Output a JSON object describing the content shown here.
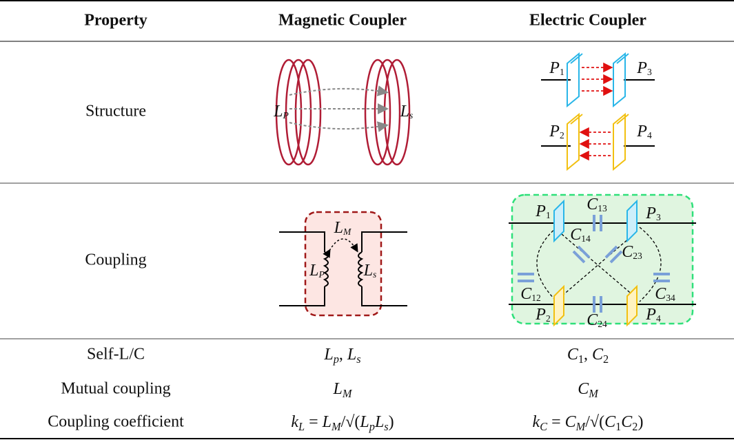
{
  "table": {
    "header": [
      "Property",
      "Magnetic Coupler",
      "Electric Coupler"
    ],
    "rows": [
      {
        "property": "Structure",
        "magnetic": [
          [
            "L",
            "P"
          ],
          [
            "L",
            "s"
          ]
        ],
        "electric": [
          [
            "P",
            "1"
          ],
          [
            "P",
            "3"
          ],
          [
            "P",
            "2"
          ],
          [
            "P",
            "4"
          ]
        ]
      },
      {
        "property": "Coupling",
        "magnetic": [
          [
            "L",
            "M"
          ],
          [
            "L",
            "P"
          ],
          [
            "L",
            "s"
          ]
        ],
        "electric": [
          [
            "P",
            "1"
          ],
          [
            "C",
            "13"
          ],
          [
            "P",
            "3"
          ],
          [
            "C",
            "14"
          ],
          [
            "C",
            "23"
          ],
          [
            "C",
            "12"
          ],
          [
            "C",
            "34"
          ],
          [
            "P",
            "2"
          ],
          [
            "C",
            "24"
          ],
          [
            "P",
            "4"
          ]
        ]
      },
      {
        "property": "Self-L/C",
        "magnetic": [
          [
            "L",
            "p"
          ],
          ", ",
          [
            "L",
            "s"
          ]
        ],
        "electric": [
          [
            "C",
            "1"
          ],
          ", ",
          [
            "C",
            "2"
          ]
        ]
      },
      {
        "property": "Mutual coupling",
        "magnetic": [
          [
            "L",
            "M"
          ]
        ],
        "electric": [
          [
            "C",
            "M"
          ]
        ]
      },
      {
        "property": "Coupling coefficient",
        "magnetic": [
          [
            "k",
            "L"
          ],
          " = ",
          [
            "L",
            "M"
          ],
          "/√(",
          [
            "L",
            "p"
          ],
          [
            "L",
            "s"
          ],
          ")"
        ],
        "electric": [
          [
            "k",
            "C"
          ],
          " = ",
          [
            "C",
            "M"
          ],
          "/√(",
          [
            "C",
            "1"
          ],
          [
            "C",
            "2"
          ],
          ")"
        ]
      }
    ]
  }
}
